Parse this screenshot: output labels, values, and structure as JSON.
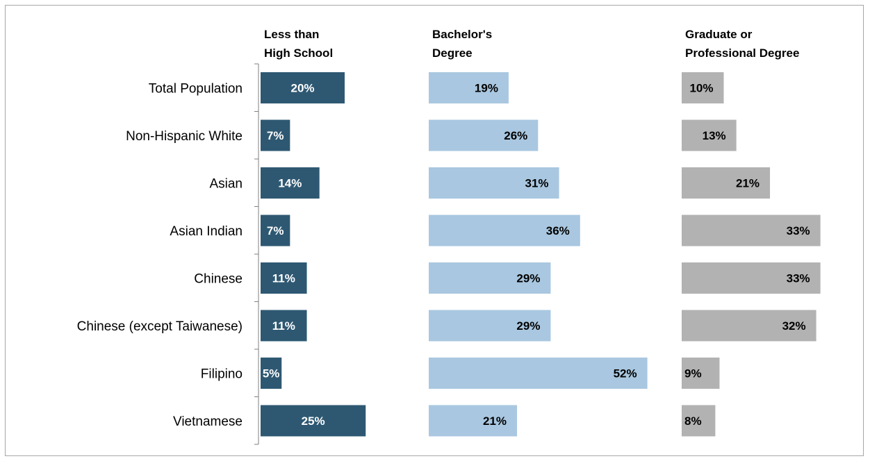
{
  "chart_data": {
    "type": "bar",
    "orientation": "horizontal",
    "categories": [
      "Total Population",
      "Non-Hispanic White",
      "Asian",
      "Asian Indian",
      "Chinese",
      "Chinese (except Taiwanese)",
      "Filipino",
      "Vietnamese"
    ],
    "series": [
      {
        "name": "Less than High School",
        "name_lines": [
          "Less than",
          "High School"
        ],
        "color": "#2e5872",
        "values": [
          20,
          7,
          14,
          7,
          11,
          11,
          5,
          25
        ],
        "labels": [
          "20%",
          "7%",
          "14%",
          "7%",
          "11%",
          "11%",
          "5%",
          "25%"
        ]
      },
      {
        "name": "Bachelor's Degree",
        "name_lines": [
          "Bachelor's",
          "Degree"
        ],
        "color": "#a9c7e0",
        "values": [
          19,
          26,
          31,
          36,
          29,
          29,
          52,
          21
        ],
        "labels": [
          "19%",
          "26%",
          "31%",
          "36%",
          "29%",
          "29%",
          "52%",
          "21%"
        ]
      },
      {
        "name": "Graduate or Professional Degree",
        "name_lines": [
          "Graduate or",
          "Professional Degree"
        ],
        "color": "#b2b2b2",
        "values": [
          10,
          13,
          21,
          33,
          33,
          32,
          9,
          8
        ],
        "labels": [
          "10%",
          "13%",
          "21%",
          "33%",
          "33%",
          "32%",
          "9%",
          "8%"
        ]
      }
    ],
    "unit": "%",
    "grid": false,
    "legend": "column headers at top"
  }
}
